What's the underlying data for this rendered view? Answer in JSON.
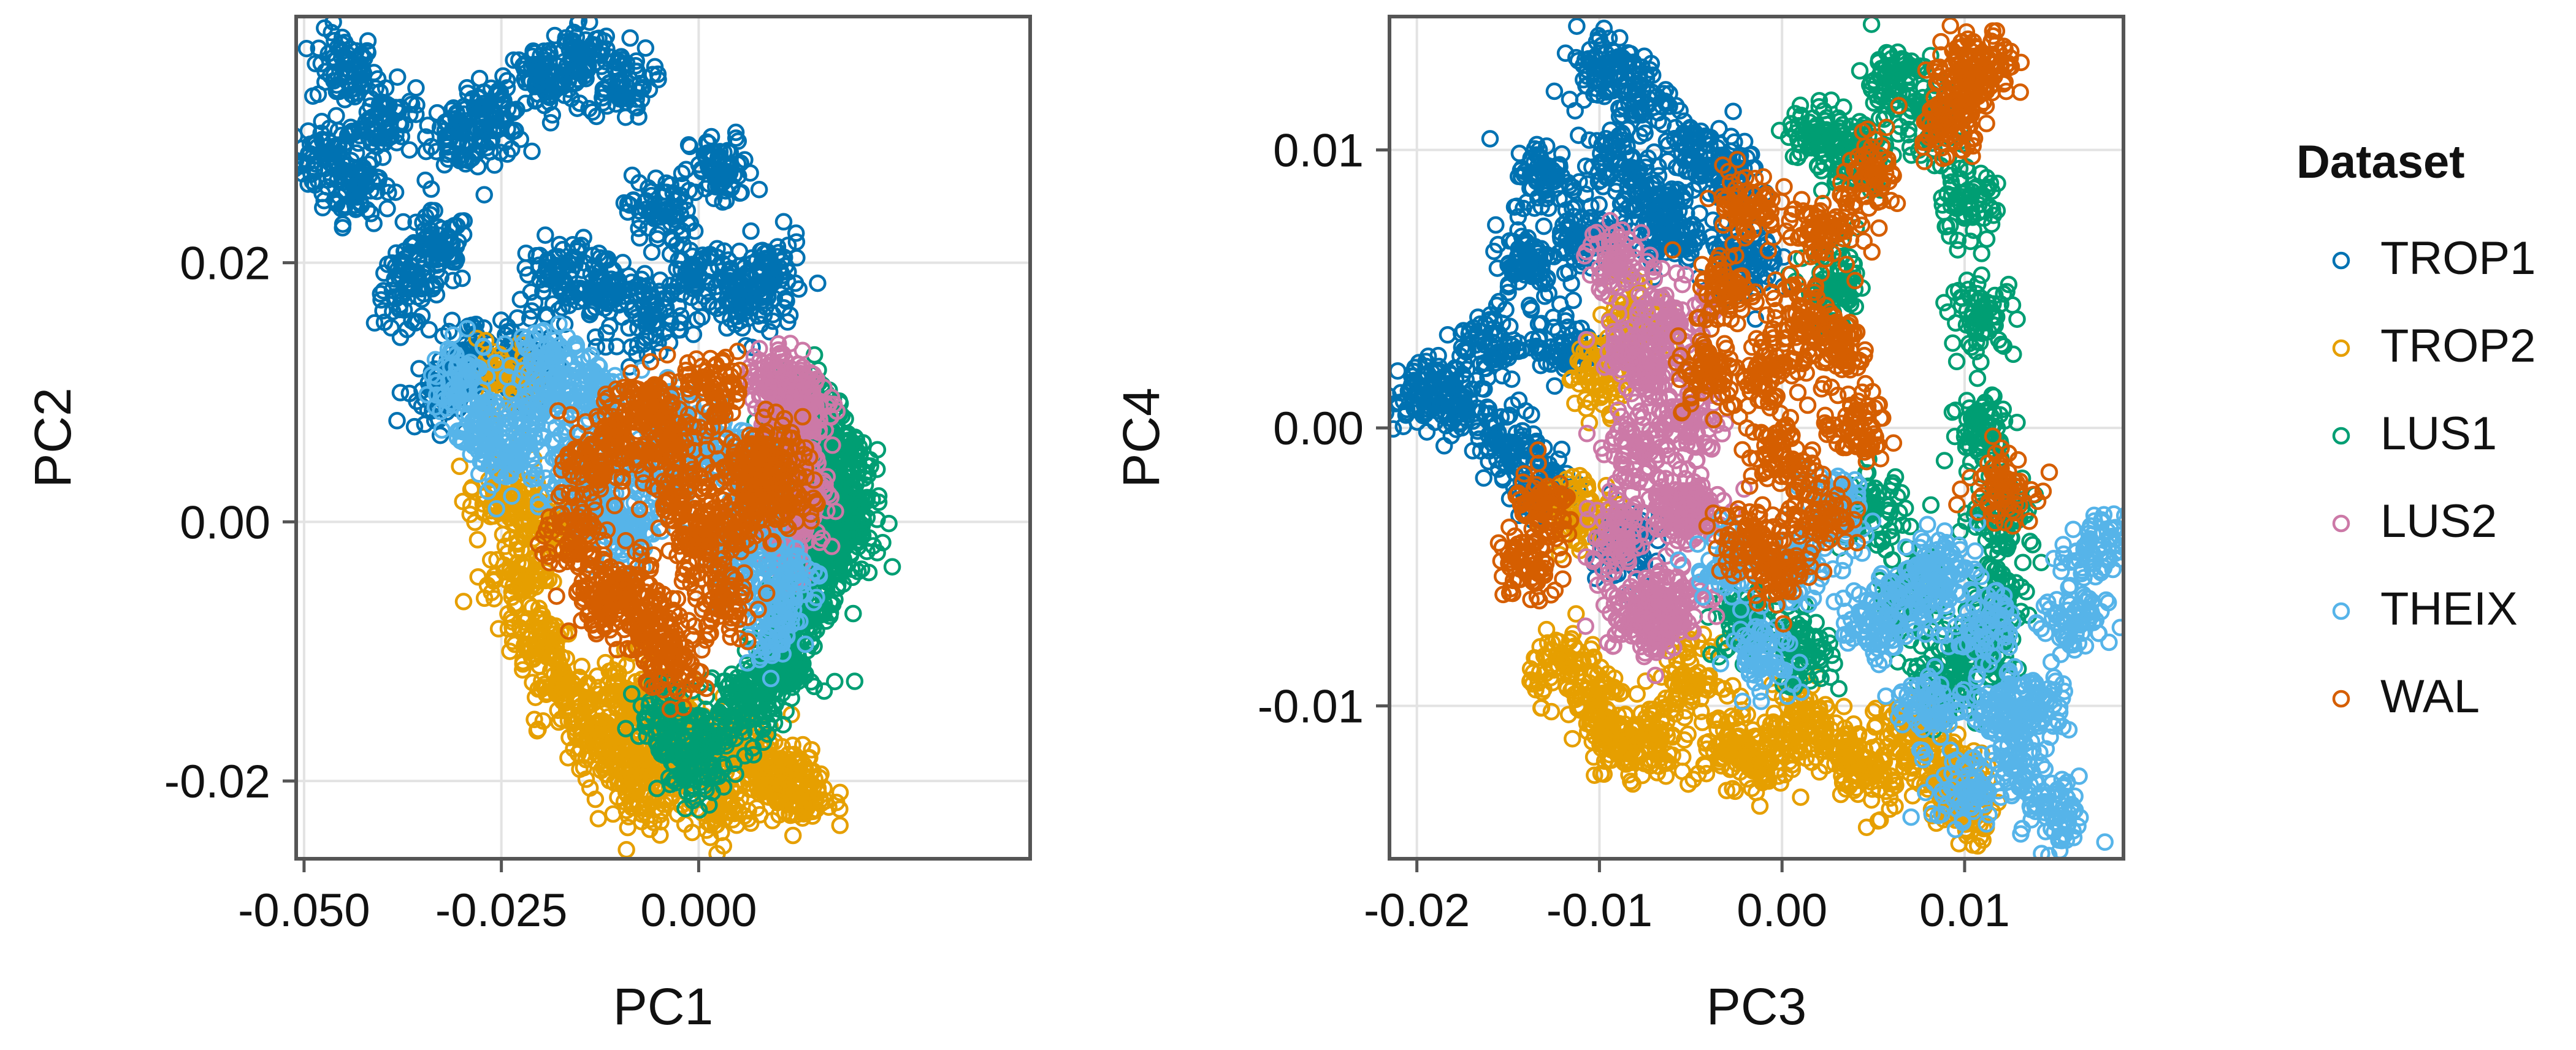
{
  "chart_data": [
    {
      "type": "scatter",
      "title": "",
      "xlabel": "PC1",
      "ylabel": "PC2",
      "xlim": [
        -0.051,
        0.042
      ],
      "ylim": [
        -0.026,
        0.039
      ],
      "xticks": [
        -0.05,
        -0.025,
        0.0
      ],
      "xtick_labels": [
        "-0.050",
        "-0.025",
        "0.000"
      ],
      "yticks": [
        -0.02,
        0.0,
        0.02
      ],
      "ytick_labels": [
        "-0.02",
        "0.00",
        "0.02"
      ],
      "grid": true,
      "marker": "open-circle",
      "series": [
        {
          "name": "TROP1",
          "color": "#0072B2",
          "points": [
            [
              -0.047,
              0.028
            ],
            [
              -0.045,
              0.035
            ],
            [
              -0.043,
              0.026
            ],
            [
              -0.04,
              0.031
            ],
            [
              -0.037,
              0.018
            ],
            [
              -0.033,
              0.021
            ],
            [
              -0.03,
              0.03
            ],
            [
              -0.026,
              0.031
            ],
            [
              -0.02,
              0.034
            ],
            [
              -0.015,
              0.036
            ],
            [
              -0.01,
              0.034
            ],
            [
              -0.005,
              0.024
            ],
            [
              0.003,
              0.027
            ],
            [
              -0.018,
              0.019
            ],
            [
              -0.012,
              0.018
            ],
            [
              -0.006,
              0.016
            ],
            [
              0.0,
              0.019
            ],
            [
              0.006,
              0.017
            ],
            [
              0.009,
              0.019
            ],
            [
              -0.022,
              0.012
            ],
            [
              -0.028,
              0.013
            ],
            [
              -0.033,
              0.01
            ]
          ]
        },
        {
          "name": "TROP2",
          "color": "#E69F00",
          "points": [
            [
              -0.025,
              0.002
            ],
            [
              -0.023,
              -0.004
            ],
            [
              -0.02,
              -0.009
            ],
            [
              -0.017,
              -0.013
            ],
            [
              -0.013,
              -0.016
            ],
            [
              -0.01,
              -0.018
            ],
            [
              -0.007,
              -0.021
            ],
            [
              -0.004,
              -0.018
            ],
            [
              0.002,
              -0.022
            ],
            [
              0.007,
              -0.019
            ],
            [
              0.011,
              -0.02
            ],
            [
              0.013,
              -0.021
            ],
            [
              -0.009,
              -0.013
            ],
            [
              -0.003,
              -0.015
            ],
            [
              0.004,
              -0.017
            ],
            [
              -0.02,
              0.0
            ],
            [
              -0.024,
              0.011
            ]
          ]
        },
        {
          "name": "LUS1",
          "color": "#009E73",
          "points": [
            [
              0.013,
              0.009
            ],
            [
              0.016,
              0.007
            ],
            [
              0.018,
              0.005
            ],
            [
              0.019,
              0.002
            ],
            [
              0.018,
              -0.001
            ],
            [
              0.016,
              -0.003
            ],
            [
              0.014,
              -0.006
            ],
            [
              0.012,
              -0.008
            ],
            [
              0.011,
              -0.011
            ],
            [
              0.009,
              -0.012
            ],
            [
              0.006,
              -0.014
            ],
            [
              0.002,
              -0.017
            ],
            [
              -0.001,
              -0.019
            ],
            [
              -0.004,
              -0.015
            ],
            [
              0.014,
              0.003
            ],
            [
              0.017,
              0.0
            ]
          ]
        },
        {
          "name": "LUS2",
          "color": "#CC79A7",
          "points": [
            [
              0.01,
              0.011
            ],
            [
              0.012,
              0.01
            ],
            [
              0.013,
              0.008
            ],
            [
              0.012,
              0.004
            ],
            [
              0.01,
              0.006
            ],
            [
              0.013,
              0.001
            ],
            [
              0.011,
              -0.002
            ],
            [
              0.009,
              0.002
            ]
          ]
        },
        {
          "name": "THEIX",
          "color": "#56B4E9",
          "points": [
            [
              -0.03,
              0.011
            ],
            [
              -0.027,
              0.007
            ],
            [
              -0.024,
              0.005
            ],
            [
              -0.02,
              0.009
            ],
            [
              -0.016,
              0.004
            ],
            [
              -0.013,
              0.001
            ],
            [
              -0.009,
              -0.001
            ],
            [
              -0.006,
              0.003
            ],
            [
              -0.003,
              0.008
            ],
            [
              0.002,
              0.006
            ],
            [
              0.005,
              -0.003
            ],
            [
              0.008,
              0.003
            ],
            [
              0.011,
              -0.004
            ],
            [
              0.009,
              -0.008
            ],
            [
              -0.019,
              0.013
            ],
            [
              -0.014,
              0.01
            ]
          ]
        },
        {
          "name": "WAL",
          "color": "#D55E00",
          "points": [
            [
              -0.016,
              -0.001
            ],
            [
              -0.013,
              0.004
            ],
            [
              -0.01,
              0.007
            ],
            [
              -0.007,
              0.009
            ],
            [
              -0.004,
              0.006
            ],
            [
              -0.002,
              0.002
            ],
            [
              0.0,
              -0.002
            ],
            [
              0.003,
              -0.006
            ],
            [
              0.006,
              0.004
            ],
            [
              0.009,
              0.005
            ],
            [
              0.011,
              0.002
            ],
            [
              -0.006,
              -0.008
            ],
            [
              -0.009,
              -0.005
            ],
            [
              -0.012,
              -0.006
            ],
            [
              -0.003,
              -0.011
            ],
            [
              0.002,
              0.01
            ],
            [
              0.005,
              0.0
            ]
          ]
        }
      ]
    },
    {
      "type": "scatter",
      "title": "",
      "xlabel": "PC3",
      "ylabel": "PC4",
      "xlim": [
        -0.0215,
        0.0187
      ],
      "ylim": [
        -0.0155,
        0.0148
      ],
      "xticks": [
        -0.02,
        -0.01,
        0.0,
        0.01
      ],
      "xtick_labels": [
        "-0.02",
        "-0.01",
        "0.00",
        "0.01"
      ],
      "yticks": [
        -0.01,
        0.0,
        0.01
      ],
      "ytick_labels": [
        "-0.01",
        "0.00",
        "0.01"
      ],
      "grid": true,
      "marker": "open-circle",
      "series": [
        {
          "name": "TROP1",
          "color": "#0072B2",
          "points": [
            [
              -0.02,
              0.0012
            ],
            [
              -0.018,
              0.0008
            ],
            [
              -0.016,
              0.003
            ],
            [
              -0.014,
              0.006
            ],
            [
              -0.013,
              0.009
            ],
            [
              -0.011,
              0.007
            ],
            [
              -0.01,
              0.013
            ],
            [
              -0.009,
              0.0095
            ],
            [
              -0.008,
              0.012
            ],
            [
              -0.007,
              0.008
            ],
            [
              -0.005,
              0.01
            ],
            [
              -0.003,
              0.009
            ],
            [
              -0.012,
              0.003
            ],
            [
              -0.015,
              -0.0005
            ],
            [
              -0.013,
              -0.002
            ],
            [
              -0.009,
              -0.004
            ],
            [
              -0.006,
              0.007
            ],
            [
              -0.002,
              0.006
            ]
          ]
        },
        {
          "name": "TROP2",
          "color": "#E69F00",
          "points": [
            [
              -0.012,
              -0.0085
            ],
            [
              -0.01,
              -0.01
            ],
            [
              -0.009,
              -0.0115
            ],
            [
              -0.007,
              -0.011
            ],
            [
              -0.005,
              -0.009
            ],
            [
              -0.003,
              -0.0115
            ],
            [
              -0.001,
              -0.012
            ],
            [
              0.001,
              -0.0105
            ],
            [
              0.003,
              -0.0115
            ],
            [
              0.005,
              -0.0125
            ],
            [
              0.007,
              -0.011
            ],
            [
              0.009,
              -0.0125
            ],
            [
              0.01,
              -0.0135
            ],
            [
              -0.011,
              -0.003
            ],
            [
              -0.01,
              0.002
            ],
            [
              -0.008,
              0.004
            ]
          ]
        },
        {
          "name": "LUS1",
          "color": "#009E73",
          "points": [
            [
              0.002,
              0.0105
            ],
            [
              0.004,
              0.01
            ],
            [
              0.006,
              0.0125
            ],
            [
              0.008,
              0.011
            ],
            [
              0.01,
              0.008
            ],
            [
              0.011,
              0.004
            ],
            [
              0.011,
              0.0
            ],
            [
              0.012,
              -0.003
            ],
            [
              0.012,
              -0.006
            ],
            [
              0.011,
              -0.008
            ],
            [
              0.009,
              -0.009
            ],
            [
              0.007,
              -0.006
            ],
            [
              0.005,
              -0.003
            ],
            [
              0.003,
              0.005
            ],
            [
              -0.002,
              -0.007
            ],
            [
              0.001,
              -0.008
            ]
          ]
        },
        {
          "name": "LUS2",
          "color": "#CC79A7",
          "points": [
            [
              -0.009,
              0.006
            ],
            [
              -0.008,
              0.003
            ],
            [
              -0.008,
              -0.001
            ],
            [
              -0.009,
              -0.004
            ],
            [
              -0.008,
              -0.0065
            ],
            [
              -0.007,
              -0.007
            ],
            [
              -0.006,
              -0.006
            ],
            [
              -0.005,
              -0.003
            ],
            [
              -0.005,
              0.0
            ],
            [
              -0.006,
              0.004
            ],
            [
              -0.007,
              0.002
            ],
            [
              -0.006,
              -0.003
            ]
          ]
        },
        {
          "name": "THEIX",
          "color": "#56B4E9",
          "points": [
            [
              -0.003,
              -0.005
            ],
            [
              -0.001,
              -0.008
            ],
            [
              0.001,
              -0.005
            ],
            [
              0.003,
              -0.003
            ],
            [
              0.005,
              -0.007
            ],
            [
              0.007,
              -0.006
            ],
            [
              0.009,
              -0.005
            ],
            [
              0.011,
              -0.007
            ],
            [
              0.012,
              -0.01
            ],
            [
              0.013,
              -0.012
            ],
            [
              0.014,
              -0.01
            ],
            [
              0.015,
              -0.014
            ],
            [
              0.016,
              -0.007
            ],
            [
              0.017,
              -0.0045
            ],
            [
              0.01,
              -0.013
            ],
            [
              0.008,
              -0.01
            ]
          ]
        },
        {
          "name": "WAL",
          "color": "#D55E00",
          "points": [
            [
              -0.004,
              0.002
            ],
            [
              -0.003,
              0.005
            ],
            [
              -0.002,
              0.008
            ],
            [
              -0.001,
              0.002
            ],
            [
              0.0,
              -0.001
            ],
            [
              0.001,
              0.004
            ],
            [
              0.002,
              0.007
            ],
            [
              0.003,
              0.003
            ],
            [
              0.004,
              0.0
            ],
            [
              0.002,
              -0.003
            ],
            [
              0.0,
              -0.005
            ],
            [
              -0.002,
              -0.004
            ],
            [
              0.009,
              0.011
            ],
            [
              0.01,
              0.0125
            ],
            [
              0.011,
              0.013
            ],
            [
              0.005,
              0.009
            ],
            [
              -0.013,
              -0.003
            ],
            [
              -0.014,
              -0.005
            ],
            [
              0.012,
              -0.002
            ]
          ]
        }
      ]
    }
  ],
  "legend": {
    "title": "Dataset",
    "entries": [
      "TROP1",
      "TROP2",
      "LUS1",
      "LUS2",
      "THEIX",
      "WAL"
    ],
    "colors": [
      "#0072B2",
      "#E69F00",
      "#009E73",
      "#CC79A7",
      "#56B4E9",
      "#D55E00"
    ]
  }
}
